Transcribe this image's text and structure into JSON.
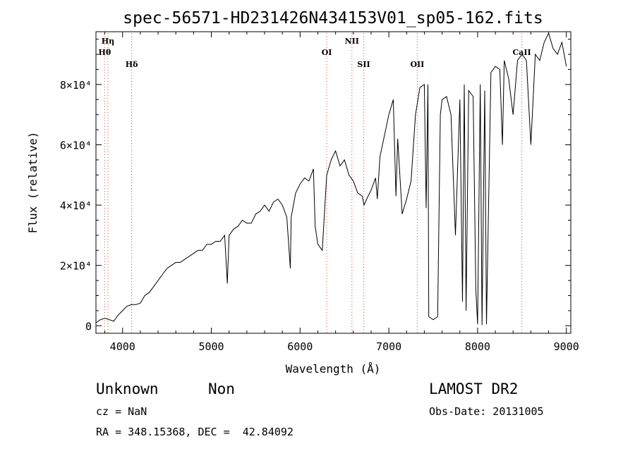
{
  "chart_data": {
    "type": "line",
    "title": "spec-56571-HD231426N434153V01_sp05-162.fits",
    "xlabel": "Wavelength (Å)",
    "ylabel": "Flux (relative)",
    "xlim": [
      3700,
      9050
    ],
    "ylim": [
      -2500,
      97500
    ],
    "x_ticks": [
      4000,
      5000,
      6000,
      7000,
      8000,
      9000
    ],
    "y_ticks": [
      {
        "value": 0,
        "label": "0"
      },
      {
        "value": 20000,
        "label": "2×10⁴"
      },
      {
        "value": 40000,
        "label": "4×10⁴"
      },
      {
        "value": 60000,
        "label": "6×10⁴"
      },
      {
        "value": 80000,
        "label": "8×10⁴"
      }
    ],
    "grid": false,
    "line_markers": [
      {
        "label": "Hη",
        "wavelength": 3835
      },
      {
        "label": "Hθ",
        "wavelength": 3798
      },
      {
        "label": "Hδ",
        "wavelength": 4102
      },
      {
        "label": "OI",
        "wavelength": 6300
      },
      {
        "label": "NII",
        "wavelength": 6584
      },
      {
        "label": "SII",
        "wavelength": 6717
      },
      {
        "label": "OII",
        "wavelength": 7320
      },
      {
        "label": "CaII",
        "wavelength": 8498
      }
    ],
    "series": [
      {
        "x": [
          3700,
          3750,
          3800,
          3850,
          3900,
          3950,
          4000,
          4050,
          4100,
          4150,
          4200,
          4250,
          4300,
          4350,
          4400,
          4450,
          4500,
          4550,
          4600,
          4650,
          4700,
          4750,
          4800,
          4850,
          4900,
          4950,
          5000,
          5050,
          5100,
          5150,
          5180,
          5200,
          5250,
          5300,
          5350,
          5400,
          5450,
          5500,
          5550,
          5600,
          5650,
          5700,
          5750,
          5800,
          5850,
          5890,
          5900,
          5950,
          6000,
          6050,
          6100,
          6150,
          6170,
          6200,
          6250,
          6280,
          6300,
          6350,
          6400,
          6450,
          6500,
          6550,
          6600,
          6650,
          6700,
          6720,
          6750,
          6800,
          6850,
          6870,
          6900,
          6950,
          7000,
          7050,
          7080,
          7100,
          7150,
          7200,
          7250,
          7300,
          7350,
          7400,
          7420,
          7440,
          7450,
          7500,
          7550,
          7580,
          7600,
          7650,
          7700,
          7750,
          7800,
          7830,
          7850,
          7870,
          7900,
          7950,
          7980,
          8000,
          8030,
          8050,
          8080,
          8100,
          8150,
          8200,
          8250,
          8280,
          8300,
          8350,
          8400,
          8450,
          8500,
          8550,
          8600,
          8650,
          8700,
          8750,
          8800,
          8850,
          8900,
          8950,
          9000
        ],
        "y": [
          1000,
          2000,
          2500,
          2000,
          1500,
          3500,
          5000,
          6500,
          7000,
          7000,
          7500,
          10000,
          11000,
          13000,
          15000,
          17000,
          19000,
          20000,
          21000,
          21000,
          22000,
          23000,
          24000,
          25000,
          25000,
          27000,
          27000,
          28000,
          28000,
          30000,
          14000,
          30000,
          32000,
          33000,
          35000,
          34000,
          34000,
          37000,
          38000,
          40000,
          38000,
          41000,
          42000,
          40000,
          36000,
          19000,
          36000,
          44000,
          47000,
          49000,
          48000,
          52000,
          33000,
          27000,
          25000,
          40000,
          50000,
          55000,
          58000,
          53000,
          55000,
          50000,
          48000,
          44000,
          43000,
          40000,
          42000,
          45000,
          49000,
          42000,
          56000,
          63000,
          70000,
          75000,
          43000,
          62000,
          37000,
          42000,
          48000,
          70000,
          79000,
          80000,
          39000,
          80000,
          3000,
          2000,
          3000,
          70000,
          75000,
          76000,
          70000,
          30000,
          75000,
          8000,
          80000,
          5000,
          78000,
          76000,
          12000,
          500,
          80000,
          200,
          78000,
          500,
          84000,
          86000,
          85000,
          60000,
          88000,
          82000,
          70000,
          88000,
          90000,
          88000,
          60000,
          90000,
          88000,
          94000,
          97000,
          92000,
          90000,
          94000,
          86000
        ]
      }
    ]
  },
  "info": {
    "object_type": "Unknown",
    "object_class": "Non",
    "cz": "cz = NaN",
    "radec": "RA = 348.15368, DEC =  42.84092",
    "survey": "LAMOST DR2",
    "obs_date": "Obs-Date: 20131005"
  }
}
